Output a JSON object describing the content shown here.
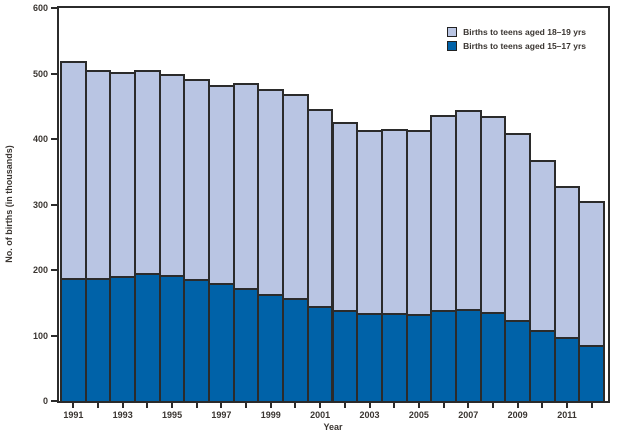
{
  "chart_data": {
    "type": "bar",
    "stacked": true,
    "title": "",
    "xlabel": "Year",
    "ylabel": "No. of births (in thousands)",
    "ylim": [
      0,
      600
    ],
    "yticks": [
      0,
      100,
      200,
      300,
      400,
      500,
      600
    ],
    "categories": [
      1991,
      1992,
      1993,
      1994,
      1995,
      1996,
      1997,
      1998,
      1999,
      2000,
      2001,
      2002,
      2003,
      2004,
      2005,
      2006,
      2007,
      2008,
      2009,
      2010,
      2011,
      2012
    ],
    "xtick_labeled_years": [
      1991,
      1993,
      1995,
      1997,
      1999,
      2001,
      2003,
      2005,
      2007,
      2009,
      2011
    ],
    "series": [
      {
        "name": "Births to teens aged 18–19 yrs",
        "stack_position": "top",
        "color": "#b9c5e3",
        "values": [
          331,
          318,
          311,
          310,
          307,
          306,
          303,
          312,
          312,
          312,
          301,
          287,
          280,
          281,
          281,
          297,
          304,
          299,
          285,
          259,
          232,
          219
        ]
      },
      {
        "name": "Births to teens aged 15–17 yrs",
        "stack_position": "bottom",
        "color": "#0062a8",
        "values": [
          188,
          188,
          191,
          195,
          193,
          186,
          180,
          173,
          164,
          157,
          145,
          139,
          134,
          134,
          133,
          139,
          141,
          136,
          124,
          109,
          97,
          86
        ]
      }
    ],
    "legend_position": "top-right",
    "grid": false,
    "frame": true,
    "bar_border_color": "#2b2b2b",
    "axis_color": "#2b2b2b",
    "text_color": "#3a3531"
  }
}
